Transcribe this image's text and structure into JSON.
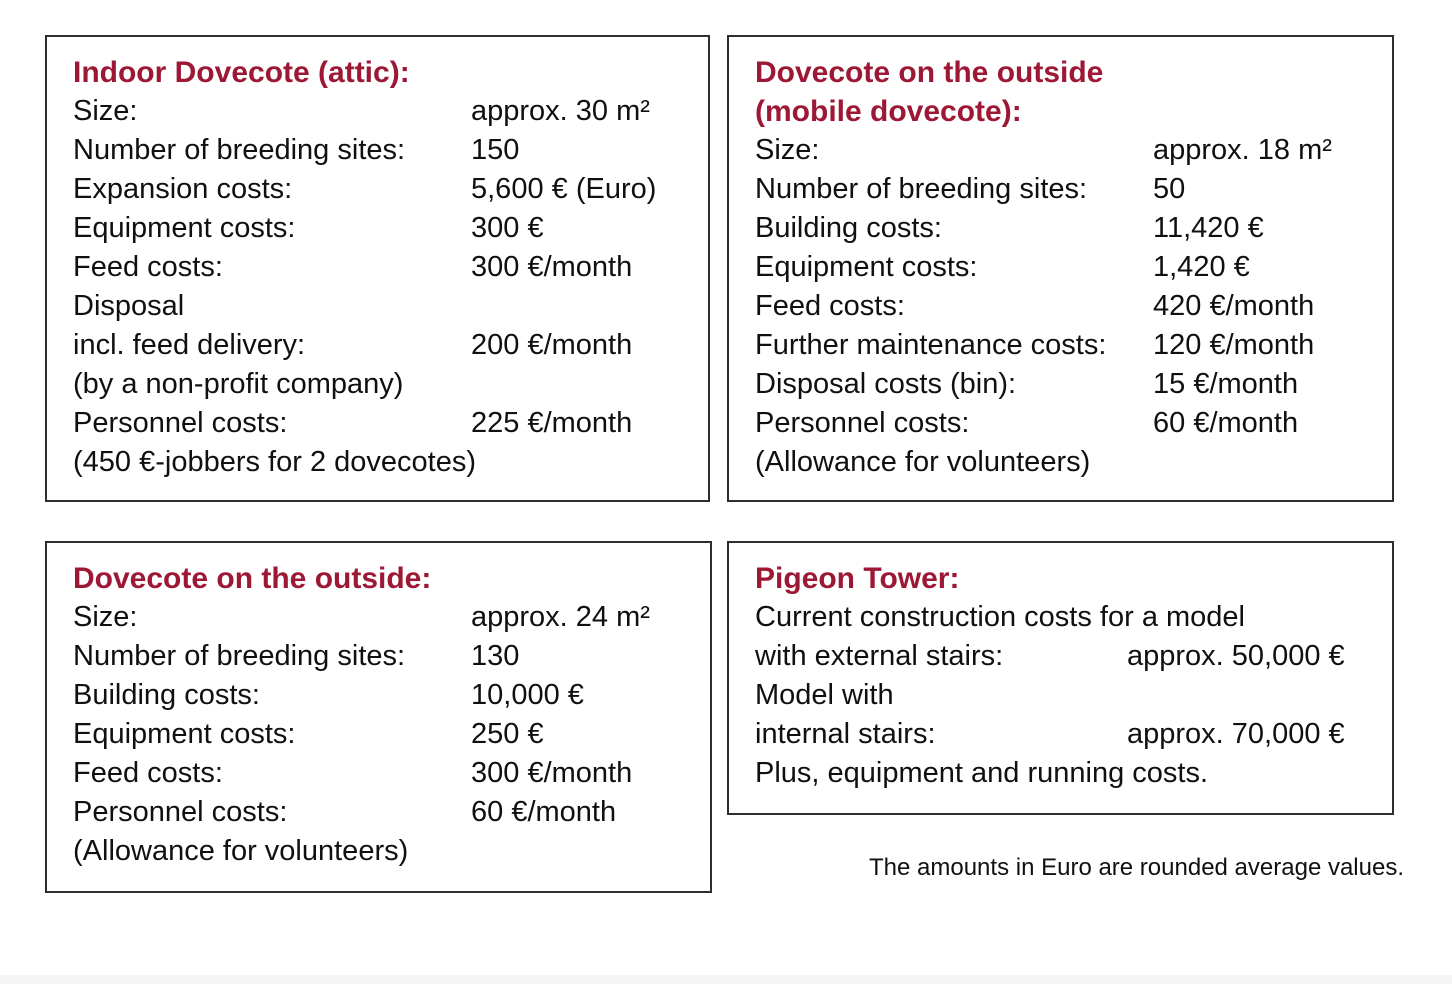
{
  "accent_color": "#9d1834",
  "footnote": "The amounts in Euro are rounded average values.",
  "boxes": [
    {
      "name": "indoor-dovecote-attic",
      "title_lines": [
        "Indoor Dovecote (attic):"
      ],
      "rows": [
        {
          "label": "Size:",
          "value": "approx. 30 m²"
        },
        {
          "label": "Number of breeding sites:",
          "value": "150"
        },
        {
          "label": "Expansion costs:",
          "value": "5,600 € (Euro)"
        },
        {
          "label": "Equipment costs:",
          "value": "300 €"
        },
        {
          "label": "Feed costs:",
          "value": "300 €/month"
        },
        {
          "label": "Disposal",
          "value": ""
        },
        {
          "label": "incl. feed delivery:",
          "value": "200 €/month"
        },
        {
          "label": "(by a non-profit company)",
          "value": ""
        },
        {
          "label": "Personnel costs:",
          "value": "225 €/month"
        },
        {
          "label": "(450 €-jobbers for 2 dovecotes)",
          "value": ""
        }
      ]
    },
    {
      "name": "dovecote-outside-mobile",
      "title_lines": [
        "Dovecote on the outside",
        "(mobile dovecote):"
      ],
      "rows": [
        {
          "label": "Size:",
          "value": "approx. 18 m²"
        },
        {
          "label": "Number of breeding sites:",
          "value": "50"
        },
        {
          "label": "Building costs:",
          "value": "11,420 €"
        },
        {
          "label": "Equipment costs:",
          "value": "1,420 €"
        },
        {
          "label": "Feed costs:",
          "value": "420 €/month"
        },
        {
          "label": "Further maintenance costs:",
          "value": "120 €/month"
        },
        {
          "label": "Disposal costs (bin):",
          "value": "15 €/month"
        },
        {
          "label": "Personnel costs:",
          "value": "60 €/month"
        },
        {
          "label": "(Allowance for volunteers)",
          "value": ""
        }
      ]
    },
    {
      "name": "dovecote-outside",
      "title_lines": [
        "Dovecote on the outside:"
      ],
      "rows": [
        {
          "label": "Size:",
          "value": "approx. 24 m²"
        },
        {
          "label": "Number of breeding sites:",
          "value": "130"
        },
        {
          "label": "Building costs:",
          "value": "10,000 €"
        },
        {
          "label": "Equipment costs:",
          "value": "250 €"
        },
        {
          "label": "Feed costs:",
          "value": "300 €/month"
        },
        {
          "label": "Personnel costs:",
          "value": "60 €/month"
        },
        {
          "label": "(Allowance for volunteers)",
          "value": ""
        }
      ]
    },
    {
      "name": "pigeon-tower",
      "title_lines": [
        "Pigeon Tower:"
      ],
      "rows": [
        {
          "label": "Current construction costs for a model",
          "value": ""
        },
        {
          "label": "with external stairs:",
          "value": "approx. 50,000 €"
        },
        {
          "label": "Model with",
          "value": ""
        },
        {
          "label": "internal stairs:",
          "value": "approx. 70,000 €"
        },
        {
          "label": "Plus, equipment and running costs.",
          "value": ""
        }
      ]
    }
  ]
}
